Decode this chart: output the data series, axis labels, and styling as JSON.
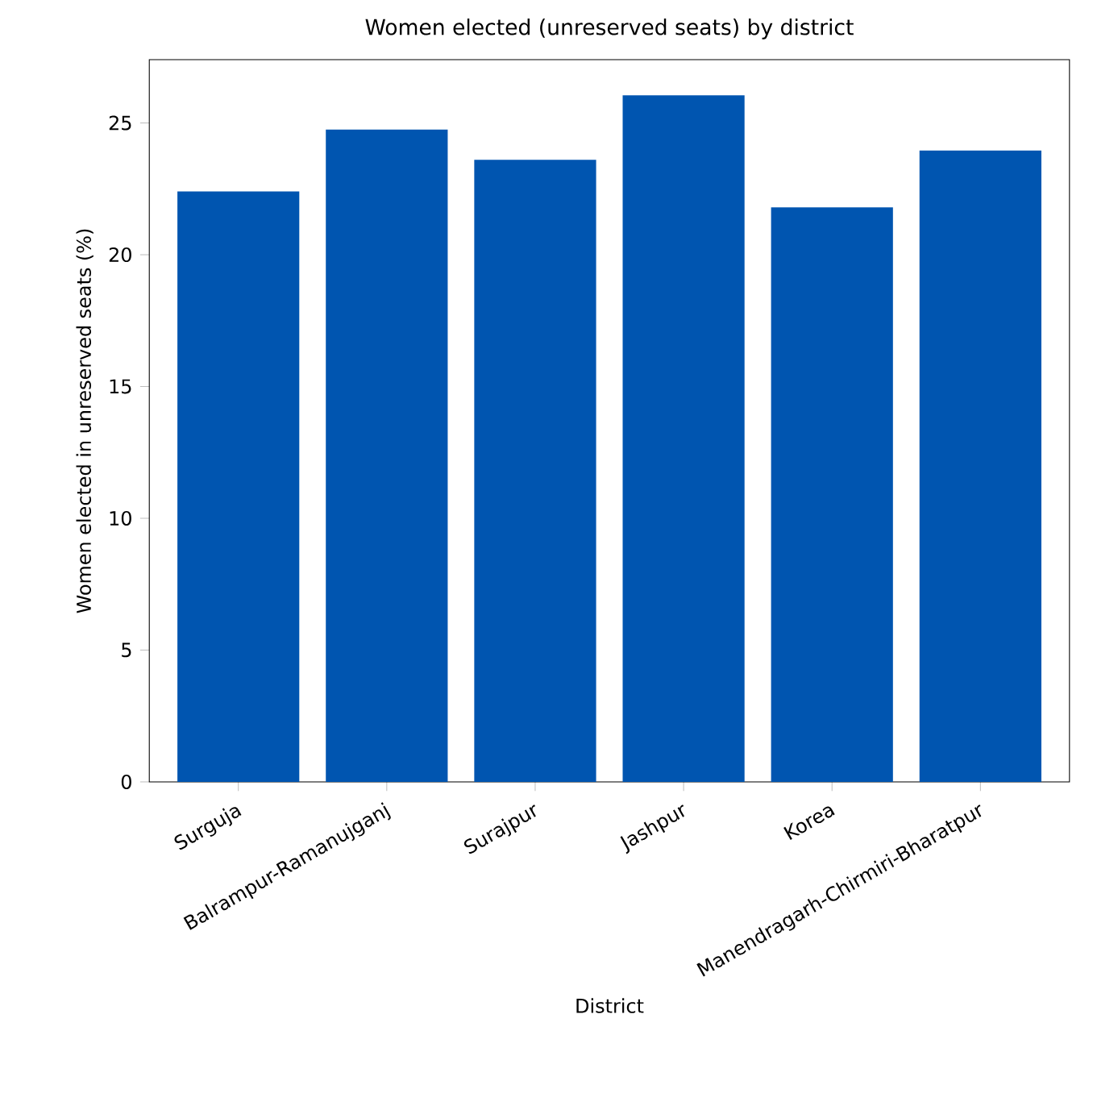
{
  "chart_data": {
    "type": "bar",
    "title": "Women elected (unreserved seats) by district",
    "xlabel": "District",
    "ylabel": "Women elected in unreserved seats (%)",
    "categories": [
      "Surguja",
      "Balrampur-Ramanujganj",
      "Surajpur",
      "Jashpur",
      "Korea",
      "Manendragarh-Chirmiri-Bharatpur"
    ],
    "values": [
      22.4,
      24.75,
      23.6,
      26.05,
      21.8,
      23.95
    ],
    "color": "#0055b0",
    "ylim": [
      0,
      27.4
    ],
    "yticks": [
      0,
      5,
      10,
      15,
      20,
      25
    ],
    "grid": false
  }
}
